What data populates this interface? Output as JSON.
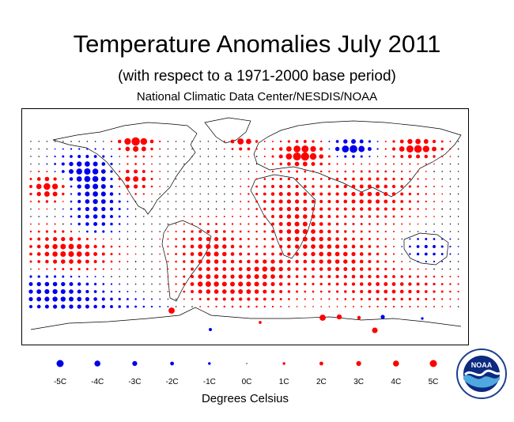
{
  "title": "Temperature Anomalies July 2011",
  "subtitle": "(with respect to a 1971-2000 base period)",
  "source": "National Climatic Data Center/NESDIS/NOAA",
  "legend": {
    "unit_label": "Degrees Celsius",
    "items": [
      {
        "label": "-5C",
        "value": -5
      },
      {
        "label": "-4C",
        "value": -4
      },
      {
        "label": "-3C",
        "value": -3
      },
      {
        "label": "-2C",
        "value": -2
      },
      {
        "label": "-1C",
        "value": -1
      },
      {
        "label": "0C",
        "value": 0
      },
      {
        "label": "1C",
        "value": 1
      },
      {
        "label": "2C",
        "value": 2
      },
      {
        "label": "3C",
        "value": 3
      },
      {
        "label": "4C",
        "value": 4
      },
      {
        "label": "5C",
        "value": 5
      }
    ]
  },
  "colors": {
    "warm": "#ff0000",
    "cold": "#0000ee",
    "neutral": "#000000",
    "coastline": "#000000",
    "map_border": "#000000"
  },
  "logo": {
    "name": "noaa-logo",
    "text": "NOAA"
  }
}
